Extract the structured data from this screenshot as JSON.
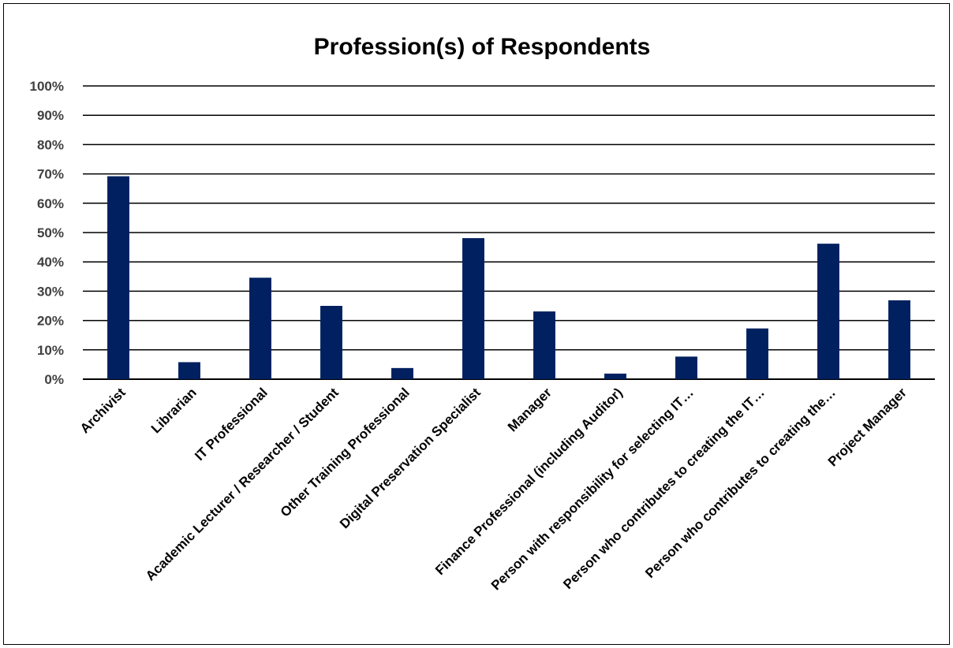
{
  "chart_data": {
    "type": "bar",
    "title": "Profession(s) of Respondents",
    "xlabel": "",
    "ylabel": "",
    "ylim": [
      0,
      100
    ],
    "y_ticks": [
      "0%",
      "10%",
      "20%",
      "30%",
      "40%",
      "50%",
      "60%",
      "70%",
      "80%",
      "90%",
      "100%"
    ],
    "grid": true,
    "bar_color": "#002060",
    "categories": [
      "Archivist",
      "Librarian",
      "IT Professional",
      "Academic Lecturer / Researcher / Student",
      "Other Training Professional",
      "Digital Preservation Specialist",
      "Manager",
      "Finance Professional (including Auditor)",
      "Person with responsibility for selecting IT…",
      "Person who contributes to creating the IT…",
      "Person who contributes to creating the…",
      "Project Manager"
    ],
    "values": [
      69.2,
      5.8,
      34.6,
      25.0,
      3.8,
      48.1,
      23.1,
      1.9,
      7.7,
      17.3,
      46.2,
      26.9
    ]
  }
}
